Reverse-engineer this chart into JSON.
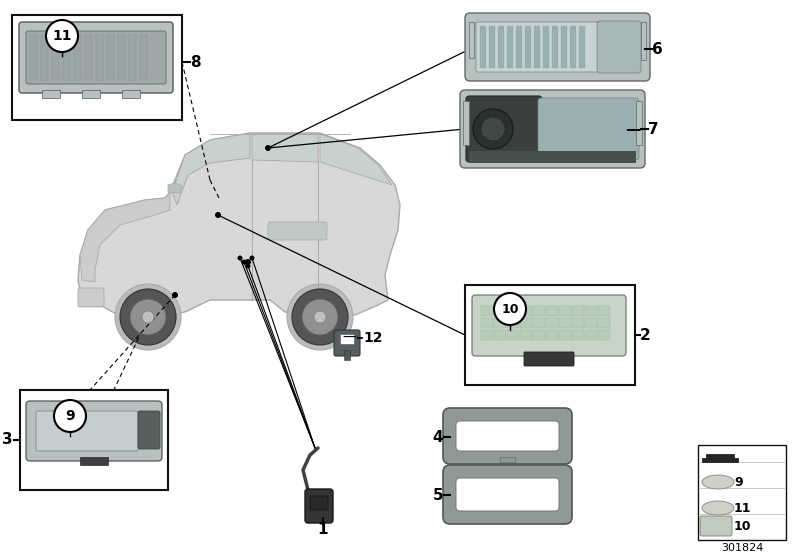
{
  "bg_color": "#ffffff",
  "car_color": "#d8d8d8",
  "car_edge": "#aaaaaa",
  "car_glass": "#c8d0d0",
  "lamp_outer": "#b8c0c0",
  "lamp_mid": "#a0a8a8",
  "lamp_inner": "#888f8f",
  "lamp_dark": "#606060",
  "lamp_light_face": "#c8d4d4",
  "gasket_color": "#909898",
  "box_edge": "#000000",
  "label_color": "#000000",
  "ref_number": "301824",
  "label_dash": "—"
}
